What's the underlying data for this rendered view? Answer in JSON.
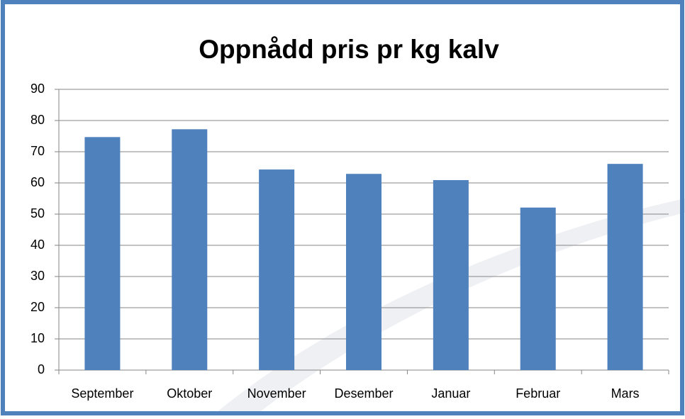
{
  "chart_data": {
    "type": "bar",
    "title": "Oppnådd pris pr kg kalv",
    "categories": [
      "September",
      "Oktober",
      "November",
      "Desember",
      "Januar",
      "Februar",
      "Mars"
    ],
    "values": [
      74.7,
      77.2,
      64.3,
      62.9,
      60.9,
      52.1,
      66.1
    ],
    "color": "#4f81bd",
    "ylim": [
      0,
      90
    ],
    "yticks": [
      0,
      10,
      20,
      30,
      40,
      50,
      60,
      70,
      80,
      90
    ],
    "grid": true
  }
}
